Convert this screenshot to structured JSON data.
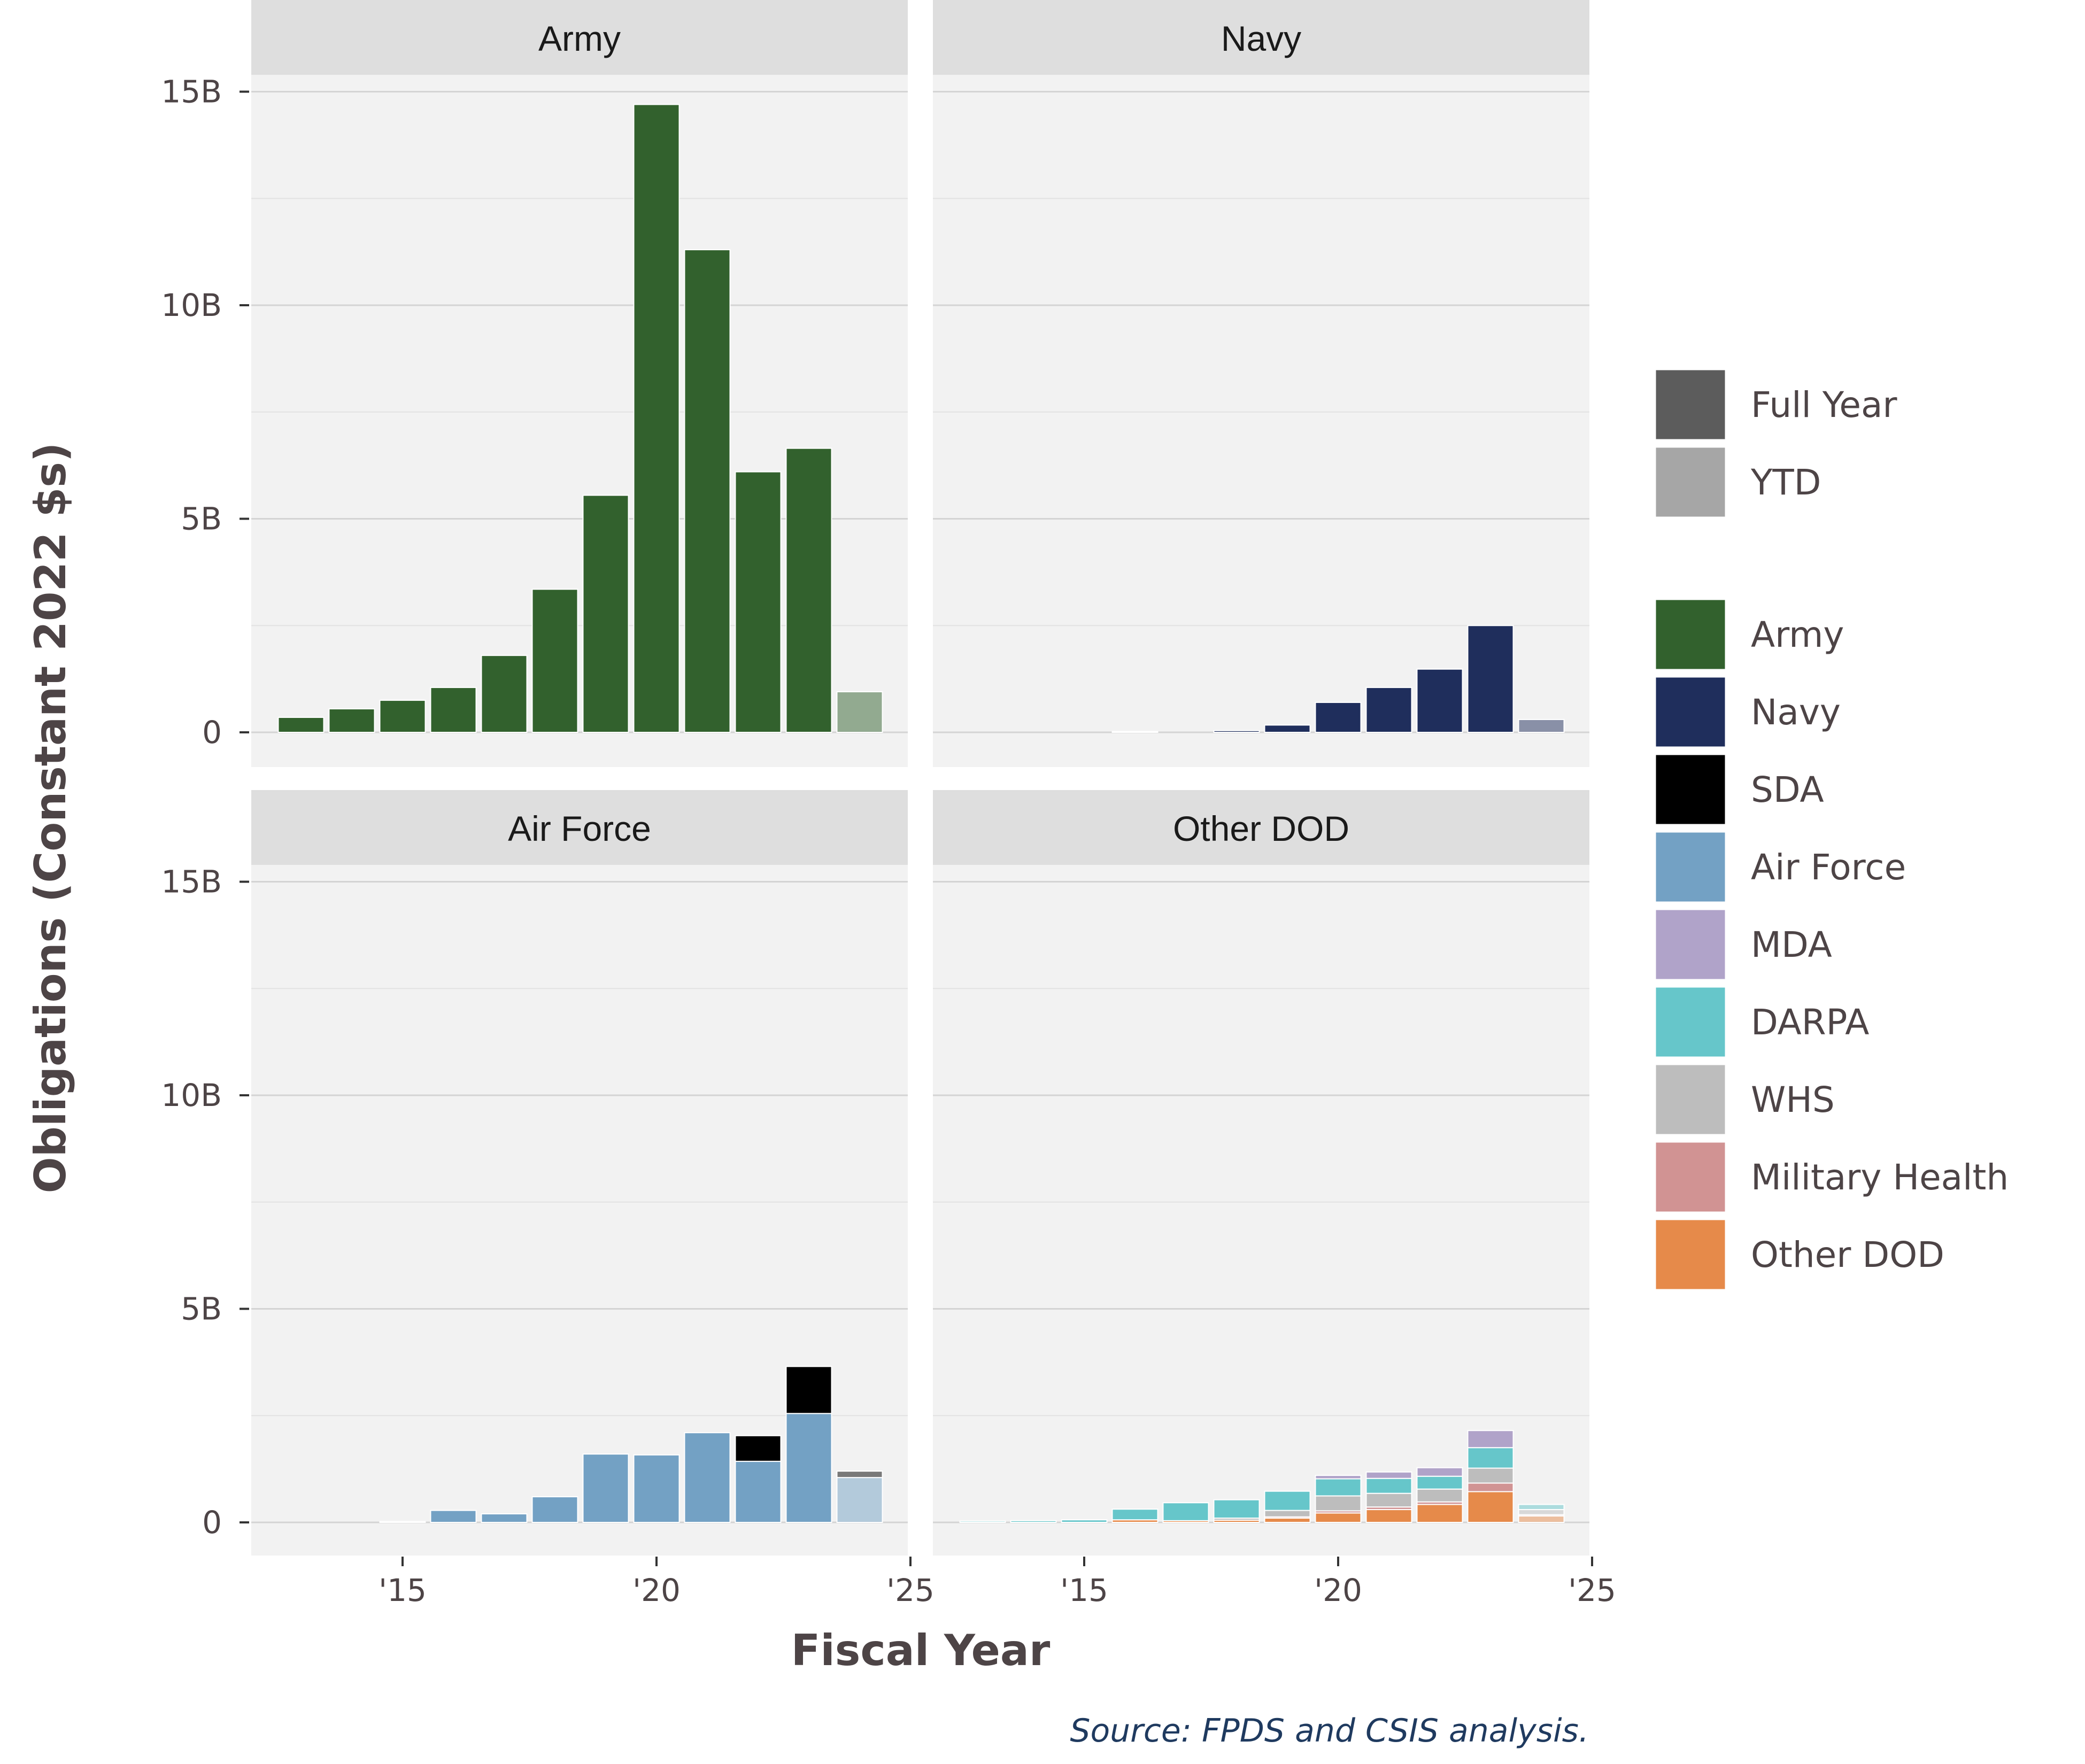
{
  "chart_data": {
    "type": "bar",
    "subtype": "faceted-stacked-bar",
    "xlabel": "Fiscal Year",
    "ylabel": "Obligations (Constant 2022 $s)",
    "source": "Source: FPDS and CSIS analysis.",
    "ylim": [
      0,
      15.5
    ],
    "y_unit": "billions",
    "y_ticks": [
      0,
      5,
      10,
      15
    ],
    "y_tick_labels": [
      "0",
      "5B",
      "10B",
      "15B"
    ],
    "x_range": [
      2012.5,
      2025
    ],
    "x_ticks": [
      2015,
      2020,
      2025
    ],
    "x_tick_labels": [
      "'15",
      "'20",
      "'25"
    ],
    "grid": true,
    "ytd_year": 2024,
    "years": [
      2013,
      2014,
      2015,
      2016,
      2017,
      2018,
      2019,
      2020,
      2021,
      2022,
      2023,
      2024
    ],
    "legend_position": "right",
    "legend_period": [
      {
        "label": "Full Year",
        "color": "#5c5c5c"
      },
      {
        "label": "YTD",
        "color": "#a6a6a6"
      }
    ],
    "legend_agency": [
      {
        "label": "Army",
        "color": "#32612d"
      },
      {
        "label": "Navy",
        "color": "#1f2e5c"
      },
      {
        "label": "SDA",
        "color": "#000000"
      },
      {
        "label": "Air Force",
        "color": "#73a1c4"
      },
      {
        "label": "MDA",
        "color": "#b0a3c9"
      },
      {
        "label": "DARPA",
        "color": "#66c6ca"
      },
      {
        "label": "WHS",
        "color": "#bdbdbd"
      },
      {
        "label": "Military Health",
        "color": "#d19393"
      },
      {
        "label": "Other DOD",
        "color": "#e68a4a"
      }
    ],
    "facets": [
      {
        "title": "Army",
        "series": [
          {
            "name": "Army",
            "values": [
              0.35,
              0.55,
              0.75,
              1.05,
              1.8,
              3.35,
              5.55,
              14.7,
              11.3,
              6.1,
              6.65,
              0.95
            ]
          }
        ]
      },
      {
        "title": "Navy",
        "series": [
          {
            "name": "Navy",
            "values": [
              0.0,
              0.0,
              0.0,
              0.02,
              0.0,
              0.04,
              0.17,
              0.7,
              1.05,
              1.48,
              2.5,
              0.3
            ]
          }
        ]
      },
      {
        "title": "Air Force",
        "series": [
          {
            "name": "Air Force",
            "values": [
              0.0,
              0.0,
              0.02,
              0.28,
              0.2,
              0.6,
              1.6,
              1.58,
              2.1,
              1.43,
              2.55,
              1.05
            ]
          },
          {
            "name": "SDA",
            "values": [
              0.0,
              0.0,
              0.0,
              0.0,
              0.0,
              0.0,
              0.0,
              0.0,
              0.0,
              0.6,
              1.1,
              0.15
            ]
          }
        ]
      },
      {
        "title": "Other DOD",
        "series": [
          {
            "name": "Other DOD",
            "values": [
              0.0,
              0.0,
              0.0,
              0.06,
              0.04,
              0.05,
              0.1,
              0.22,
              0.3,
              0.42,
              0.72,
              0.15
            ]
          },
          {
            "name": "Military Health",
            "values": [
              0.0,
              0.0,
              0.0,
              0.0,
              0.0,
              0.0,
              0.03,
              0.05,
              0.06,
              0.06,
              0.2,
              0.03
            ]
          },
          {
            "name": "WHS",
            "values": [
              0.0,
              0.0,
              0.0,
              0.0,
              0.0,
              0.05,
              0.15,
              0.35,
              0.32,
              0.3,
              0.35,
              0.12
            ]
          },
          {
            "name": "DARPA",
            "values": [
              0.03,
              0.04,
              0.06,
              0.25,
              0.42,
              0.43,
              0.45,
              0.4,
              0.35,
              0.3,
              0.48,
              0.12
            ]
          },
          {
            "name": "MDA",
            "values": [
              0.0,
              0.0,
              0.0,
              0.0,
              0.0,
              0.0,
              0.0,
              0.08,
              0.15,
              0.2,
              0.4,
              0.0
            ]
          }
        ]
      }
    ]
  }
}
